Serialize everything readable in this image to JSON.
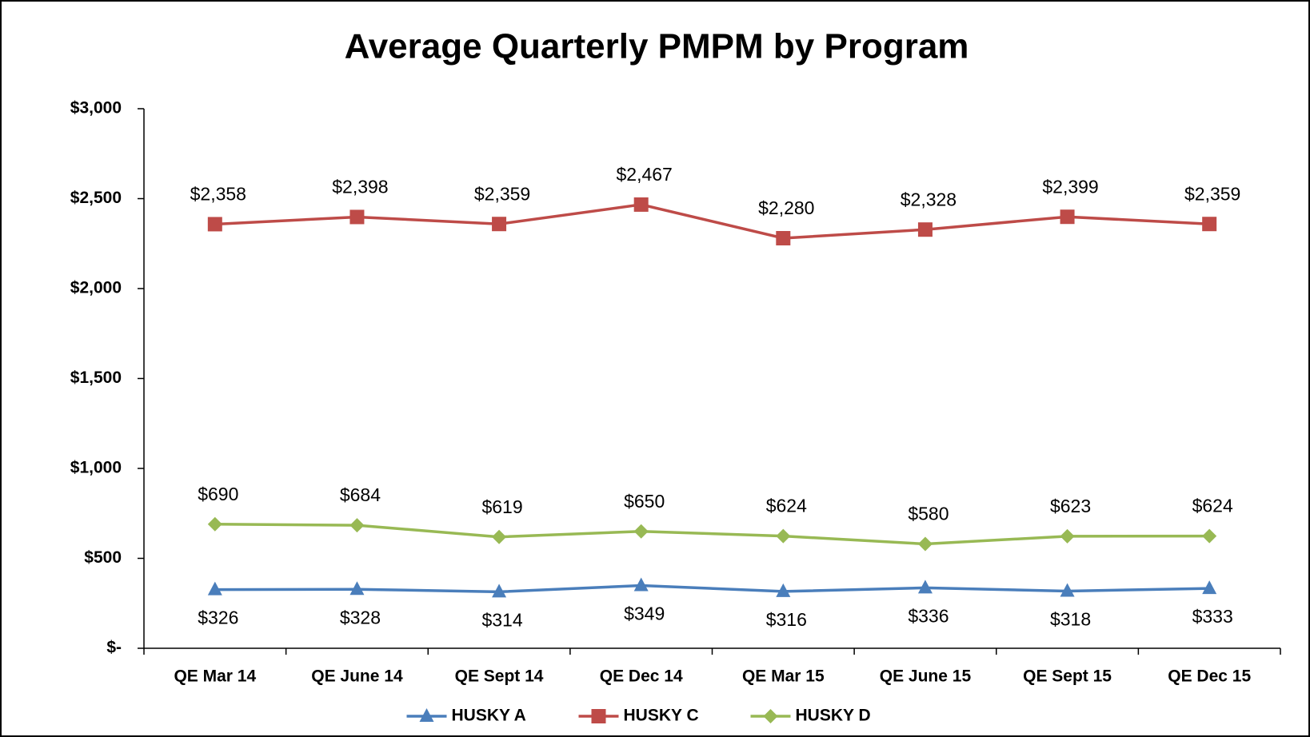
{
  "chart_data": {
    "type": "line",
    "title": "Average Quarterly PMPM by Program",
    "categories": [
      "QE Mar 14",
      "QE June 14",
      "QE Sept 14",
      "QE Dec 14",
      "QE Mar 15",
      "QE June 15",
      "QE Sept 15",
      "QE Dec 15"
    ],
    "series": [
      {
        "name": "HUSKY A",
        "color": "#4a7ebb",
        "marker": "triangle",
        "values": [
          326,
          328,
          314,
          349,
          316,
          336,
          318,
          333
        ],
        "value_labels": [
          "$326",
          "$328",
          "$314",
          "$349",
          "$316",
          "$336",
          "$318",
          "$333"
        ]
      },
      {
        "name": "HUSKY C",
        "color": "#be4b48",
        "marker": "square",
        "values": [
          2358,
          2398,
          2359,
          2467,
          2280,
          2328,
          2399,
          2359
        ],
        "value_labels": [
          "$2,358",
          "$2,398",
          "$2,359",
          "$2,467",
          "$2,280",
          "$2,328",
          "$2,399",
          "$2,359"
        ]
      },
      {
        "name": "HUSKY D",
        "color": "#98b954",
        "marker": "diamond",
        "values": [
          690,
          684,
          619,
          650,
          624,
          580,
          623,
          624
        ],
        "value_labels": [
          "$690",
          "$684",
          "$619",
          "$650",
          "$624",
          "$580",
          "$623",
          "$624"
        ]
      }
    ],
    "ylim": [
      0,
      3000
    ],
    "yticks": [
      {
        "value": 0,
        "label": "$-"
      },
      {
        "value": 500,
        "label": "$500"
      },
      {
        "value": 1000,
        "label": "$1,000"
      },
      {
        "value": 1500,
        "label": "$1,500"
      },
      {
        "value": 2000,
        "label": "$2,000"
      },
      {
        "value": 2500,
        "label": "$2,500"
      },
      {
        "value": 3000,
        "label": "$3,000"
      }
    ],
    "grid": false,
    "legend": "bottom"
  }
}
